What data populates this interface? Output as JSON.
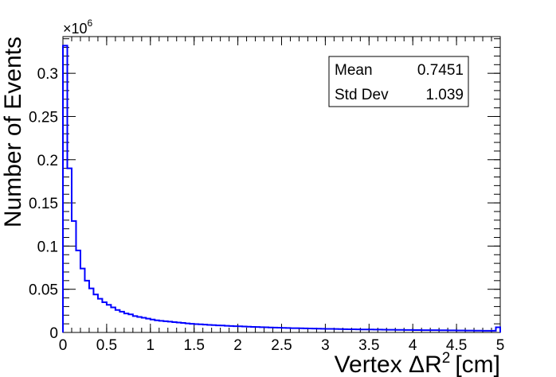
{
  "chart_data": {
    "type": "histogram",
    "xlabel_main": "Vertex ΔR",
    "xlabel_sup": "2",
    "xlabel_unit": "[cm]",
    "ylabel": "Number of Events",
    "y_multiplier_base": "×10",
    "y_multiplier_exp": "6",
    "xlim": [
      0,
      5
    ],
    "ylim": [
      0,
      0.3425
    ],
    "x_ticks": [
      "0",
      "0.5",
      "1",
      "1.5",
      "2",
      "2.5",
      "3",
      "3.5",
      "4",
      "4.5",
      "5"
    ],
    "y_ticks": [
      "0",
      "0.05",
      "0.1",
      "0.15",
      "0.2",
      "0.25",
      "0.3"
    ],
    "line_color": "#0000ff",
    "bin_width": 0.05,
    "values": [
      0.332,
      0.19,
      0.129,
      0.095,
      0.074,
      0.06,
      0.051,
      0.044,
      0.039,
      0.035,
      0.032,
      0.029,
      0.026,
      0.024,
      0.022,
      0.021,
      0.019,
      0.018,
      0.017,
      0.016,
      0.015,
      0.014,
      0.0135,
      0.013,
      0.0125,
      0.012,
      0.0115,
      0.011,
      0.0105,
      0.01,
      0.0097,
      0.0094,
      0.0091,
      0.0088,
      0.0085,
      0.0082,
      0.008,
      0.0077,
      0.0075,
      0.0073,
      0.0071,
      0.0069,
      0.0067,
      0.0065,
      0.0063,
      0.0061,
      0.006,
      0.0058,
      0.0056,
      0.0055,
      0.0053,
      0.0052,
      0.005,
      0.0049,
      0.0048,
      0.0047,
      0.0046,
      0.0045,
      0.0044,
      0.0043,
      0.0042,
      0.0041,
      0.004,
      0.0039,
      0.0038,
      0.0037,
      0.0037,
      0.0036,
      0.0035,
      0.0035,
      0.0034,
      0.0033,
      0.0033,
      0.0032,
      0.0031,
      0.0031,
      0.003,
      0.003,
      0.0029,
      0.0029,
      0.0028,
      0.0028,
      0.0027,
      0.0027,
      0.0026,
      0.0026,
      0.0025,
      0.0025,
      0.0024,
      0.0024,
      0.0023,
      0.0023,
      0.0022,
      0.0022,
      0.0021,
      0.0021,
      0.002,
      0.002,
      0.0019,
      0.006
    ],
    "stats": [
      {
        "label": "Mean",
        "value": "0.7451"
      },
      {
        "label": "Std Dev",
        "value": "1.039"
      }
    ]
  }
}
